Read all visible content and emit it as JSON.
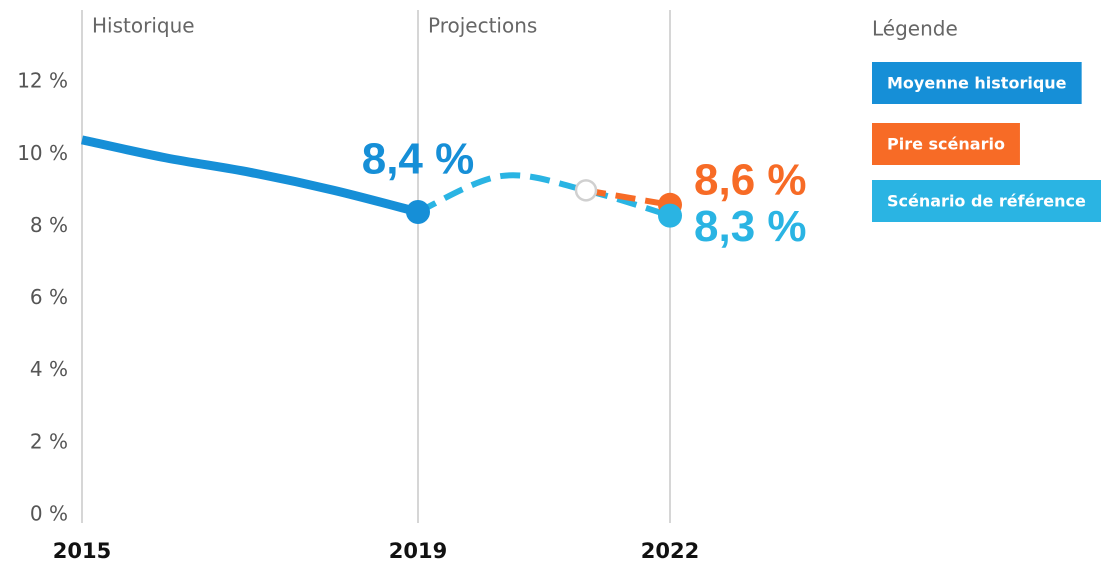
{
  "chart_data": {
    "type": "line",
    "x": [
      2015,
      2016,
      2017,
      2018,
      2019,
      2020,
      2021,
      2022
    ],
    "xlim": [
      2015,
      2022
    ],
    "xticks": [
      2015,
      2019,
      2022
    ],
    "ylim": [
      0,
      14
    ],
    "yticks": [
      {
        "value": 0,
        "label": "0 %"
      },
      {
        "value": 2,
        "label": "2 %"
      },
      {
        "value": 4,
        "label": "4 %"
      },
      {
        "value": 6,
        "label": "6 %"
      },
      {
        "value": 8,
        "label": "8 %"
      },
      {
        "value": 10,
        "label": "10 %"
      },
      {
        "value": 12,
        "label": "12 %"
      }
    ],
    "sections": [
      "Historique",
      "Projections"
    ],
    "legend_title": "Légende",
    "series": [
      {
        "name": "Moyenne historique",
        "color": "#168fd7",
        "dashed": false,
        "values": [
          10.4,
          9.9,
          9.5,
          9.0,
          8.4,
          null,
          null,
          null
        ],
        "value_labels": [
          null,
          null,
          null,
          null,
          "8,4 %",
          null,
          null,
          null
        ]
      },
      {
        "name": "Pire scénario",
        "color": "#f76b26",
        "dashed": true,
        "values": [
          null,
          null,
          null,
          null,
          null,
          null,
          9.0,
          8.6
        ],
        "value_labels": [
          null,
          null,
          null,
          null,
          null,
          null,
          null,
          "8,6 %"
        ]
      },
      {
        "name": "Scénario de référence",
        "color": "#2ab4e3",
        "dashed": true,
        "values": [
          null,
          null,
          null,
          null,
          8.4,
          9.4,
          9.0,
          8.3
        ],
        "value_labels": [
          null,
          null,
          null,
          null,
          null,
          null,
          null,
          "8,3 %"
        ]
      }
    ]
  }
}
